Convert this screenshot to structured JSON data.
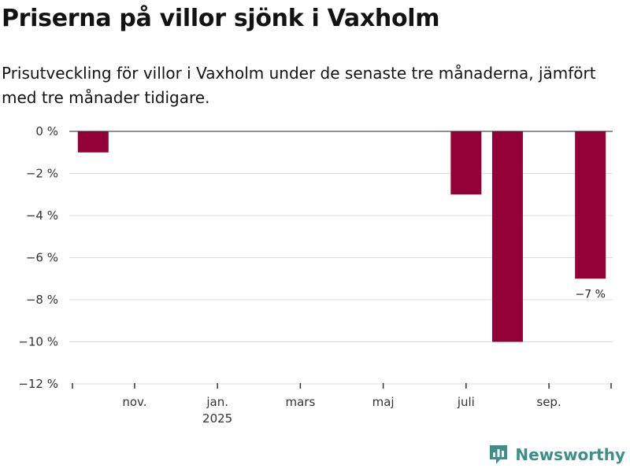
{
  "title": "Priserna på villor sjönk i Vaxholm",
  "subtitle": "Prisutveckling för villor i Vaxholm under de senaste tre månaderna, jämfört med tre månader tidigare.",
  "brand": {
    "name": "Newsworthy",
    "icon": "newsworthy-logo-icon"
  },
  "colors": {
    "bar": "#930038",
    "grid": "#dcdcdc",
    "zero_line": "#222222",
    "brand": "#3d8f88"
  },
  "chart_data": {
    "type": "bar",
    "title": "Priserna på villor sjönk i Vaxholm",
    "xlabel": "",
    "ylabel": "",
    "ylim": [
      -12,
      0
    ],
    "y_ticks": [
      {
        "value": 0,
        "label": "0 %"
      },
      {
        "value": -2,
        "label": "−2 %"
      },
      {
        "value": -4,
        "label": "−4 %"
      },
      {
        "value": -6,
        "label": "−6 %"
      },
      {
        "value": -8,
        "label": "−8 %"
      },
      {
        "value": -10,
        "label": "−10 %"
      },
      {
        "value": -12,
        "label": "−12 %"
      }
    ],
    "x_ticks": [
      {
        "month_index": 1,
        "label": "nov.",
        "sublabel": ""
      },
      {
        "month_index": 3,
        "label": "jan.",
        "sublabel": "2025"
      },
      {
        "month_index": 5,
        "label": "mars",
        "sublabel": ""
      },
      {
        "month_index": 7,
        "label": "maj",
        "sublabel": ""
      },
      {
        "month_index": 9,
        "label": "juli",
        "sublabel": ""
      },
      {
        "month_index": 11,
        "label": "sep.",
        "sublabel": ""
      }
    ],
    "x_range": [
      -0.5,
      12.5
    ],
    "series": [
      {
        "name": "Prisutveckling",
        "points": [
          {
            "month_index": 0,
            "month": "okt. 2024",
            "value": -1,
            "label": ""
          },
          {
            "month_index": 9,
            "month": "juli 2025",
            "value": -3,
            "label": ""
          },
          {
            "month_index": 10,
            "month": "aug. 2025",
            "value": -10,
            "label": ""
          },
          {
            "month_index": 12,
            "month": "okt. 2025",
            "value": -7,
            "label": "−7 %"
          }
        ]
      }
    ]
  }
}
